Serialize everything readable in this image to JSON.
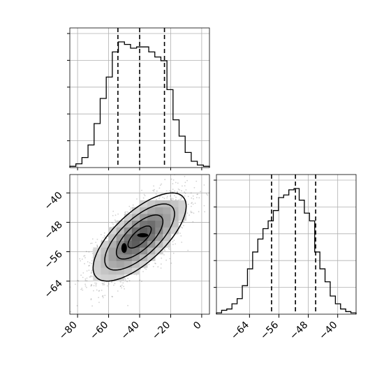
{
  "chart_data": [
    {
      "panel": "histogram-param-1",
      "type": "histogram",
      "x_range": [
        -85,
        5
      ],
      "grid": true,
      "bin_counts": [
        1,
        3,
        8,
        18,
        35,
        55,
        72,
        92,
        100,
        98,
        95,
        96,
        96,
        92,
        88,
        85,
        62,
        38,
        25,
        12,
        5,
        2,
        1
      ],
      "quantile_lines": [
        -54,
        -40,
        -24
      ],
      "xtick_labels": [],
      "ytick_labels": []
    },
    {
      "panel": "contour-2d",
      "type": "scatter",
      "x_range": [
        -85,
        5
      ],
      "y_range": [
        -73,
        -35
      ],
      "grid": true,
      "center": [
        -40,
        -52
      ],
      "std": [
        15,
        6
      ],
      "correlation": 0.7,
      "contour_levels": [
        "0.5-sigma",
        "1-sigma",
        "1.5-sigma",
        "2-sigma"
      ],
      "xtick_values": [
        -80,
        -60,
        -40,
        -20,
        0
      ],
      "xtick_labels": [
        "−80",
        "−60",
        "−40",
        "−20",
        "0"
      ],
      "ytick_values": [
        -40,
        -48,
        -56,
        -64
      ],
      "ytick_labels": [
        "−40",
        "−48",
        "−56",
        "−64"
      ]
    },
    {
      "panel": "histogram-param-2",
      "type": "histogram",
      "x_range": [
        -73,
        -35
      ],
      "grid": true,
      "bin_counts": [
        1,
        3,
        4,
        8,
        12,
        22,
        35,
        48,
        58,
        66,
        72,
        80,
        90,
        92,
        96,
        97,
        88,
        78,
        72,
        48,
        35,
        25,
        14,
        8,
        4,
        2,
        1
      ],
      "quantile_lines": [
        -58,
        -51.5,
        -46
      ],
      "xtick_values": [
        -64,
        -56,
        -48,
        -40
      ],
      "xtick_labels": [
        "−64",
        "−56",
        "−48",
        "−40"
      ],
      "ytick_labels": []
    }
  ]
}
